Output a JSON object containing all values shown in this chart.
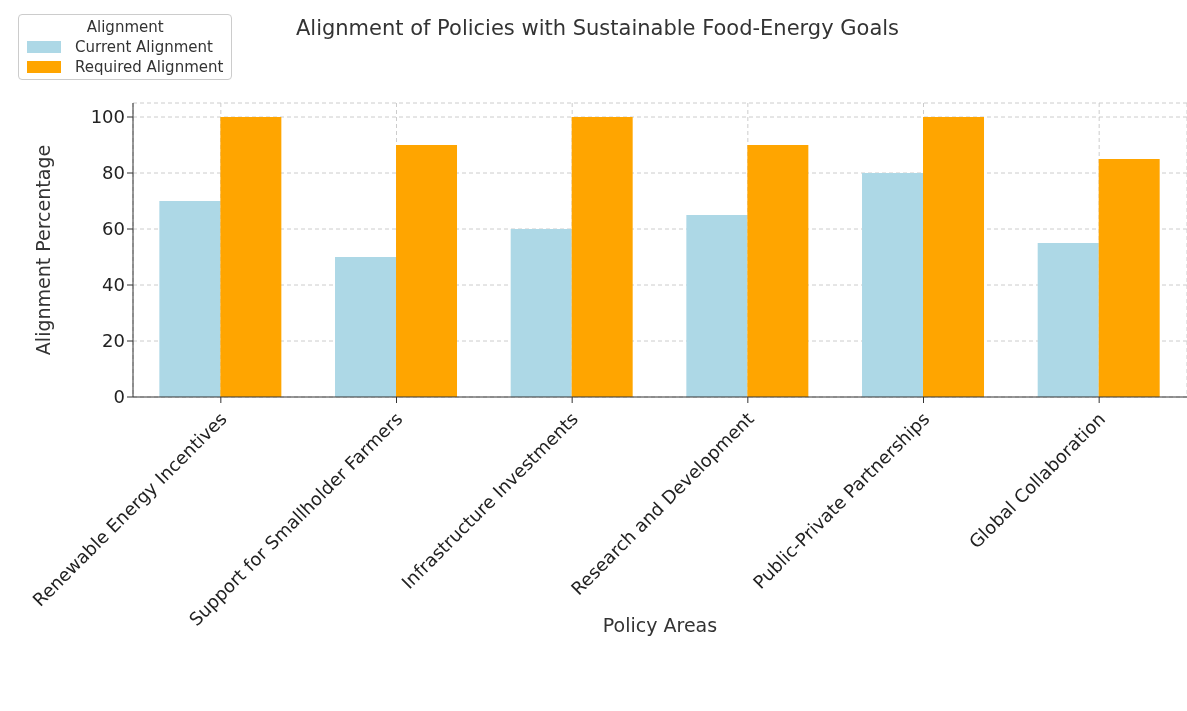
{
  "chart_data": {
    "type": "bar",
    "title": "Alignment of Policies with Sustainable Food-Energy Goals",
    "xlabel": "Policy Areas",
    "ylabel": "Alignment Percentage",
    "legend_title": "Alignment",
    "categories": [
      "Renewable Energy Incentives",
      "Support for Smallholder Farmers",
      "Infrastructure Investments",
      "Research and Development",
      "Public-Private Partnerships",
      "Global Collaboration"
    ],
    "series": [
      {
        "name": "Current Alignment",
        "color": "#add8e6",
        "values": [
          70,
          50,
          60,
          65,
          80,
          55
        ]
      },
      {
        "name": "Required Alignment",
        "color": "#ffa500",
        "values": [
          100,
          90,
          100,
          90,
          100,
          85
        ]
      }
    ],
    "ylim": [
      0,
      105
    ],
    "yticks": [
      0,
      20,
      40,
      60,
      80,
      100
    ],
    "grid": true,
    "legend": "top left"
  }
}
